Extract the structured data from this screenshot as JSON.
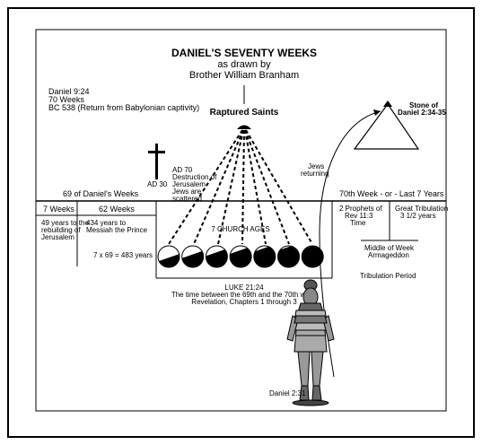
{
  "title": "DANIEL'S SEVENTY WEEKS",
  "subtitle_1": "as drawn by",
  "subtitle_2": "Brother William Branham",
  "reference_block": [
    "Daniel 9:24",
    "70 Weeks",
    "BC 538 (Return from Babylonian captivity)"
  ],
  "raptured_saints": "Raptured Saints",
  "stone_label": [
    "Stone of",
    "Daniel 2:34-35"
  ],
  "jews_returning": [
    "Jews",
    "returning"
  ],
  "ad30": "AD 30",
  "ad70_note": [
    "AD 70",
    "Destruction of",
    "Jerusalem",
    "Jews are",
    "scattered"
  ],
  "sixty_nine_weeks": "69 of Daniel's Weeks",
  "seventieth_week": "70th Week - or - Last 7 Years",
  "seven_weeks": "7 Weeks",
  "sixty_two_weeks": "62 Weeks",
  "seven_weeks_note": [
    "49 years to the",
    "rebuilding of",
    "Jerusalem"
  ],
  "sixty_two_weeks_note": [
    "434 years to",
    "Messiah the Prince"
  ],
  "equation": "7 x 69 = 483 years",
  "church_ages": "7 CHURCH AGES",
  "luke_note": [
    "LUKE 21:24",
    "The time between the 69th and the 70th week",
    "Revelation, Chapters 1 through 3"
  ],
  "two_prophets": [
    "2 Prophets of",
    "Rev 11:3",
    "Time"
  ],
  "great_tribulation": [
    "Great Tribulation",
    "3 1/2 years"
  ],
  "middle_week": [
    "Middle of Week",
    "Armageddon"
  ],
  "tribulation_period": "Tribulation Period",
  "daniel_231": "Daniel 2:31",
  "church_age_fills": [
    0.45,
    0.6,
    0.7,
    0.8,
    0.9,
    0.95,
    1.0
  ]
}
